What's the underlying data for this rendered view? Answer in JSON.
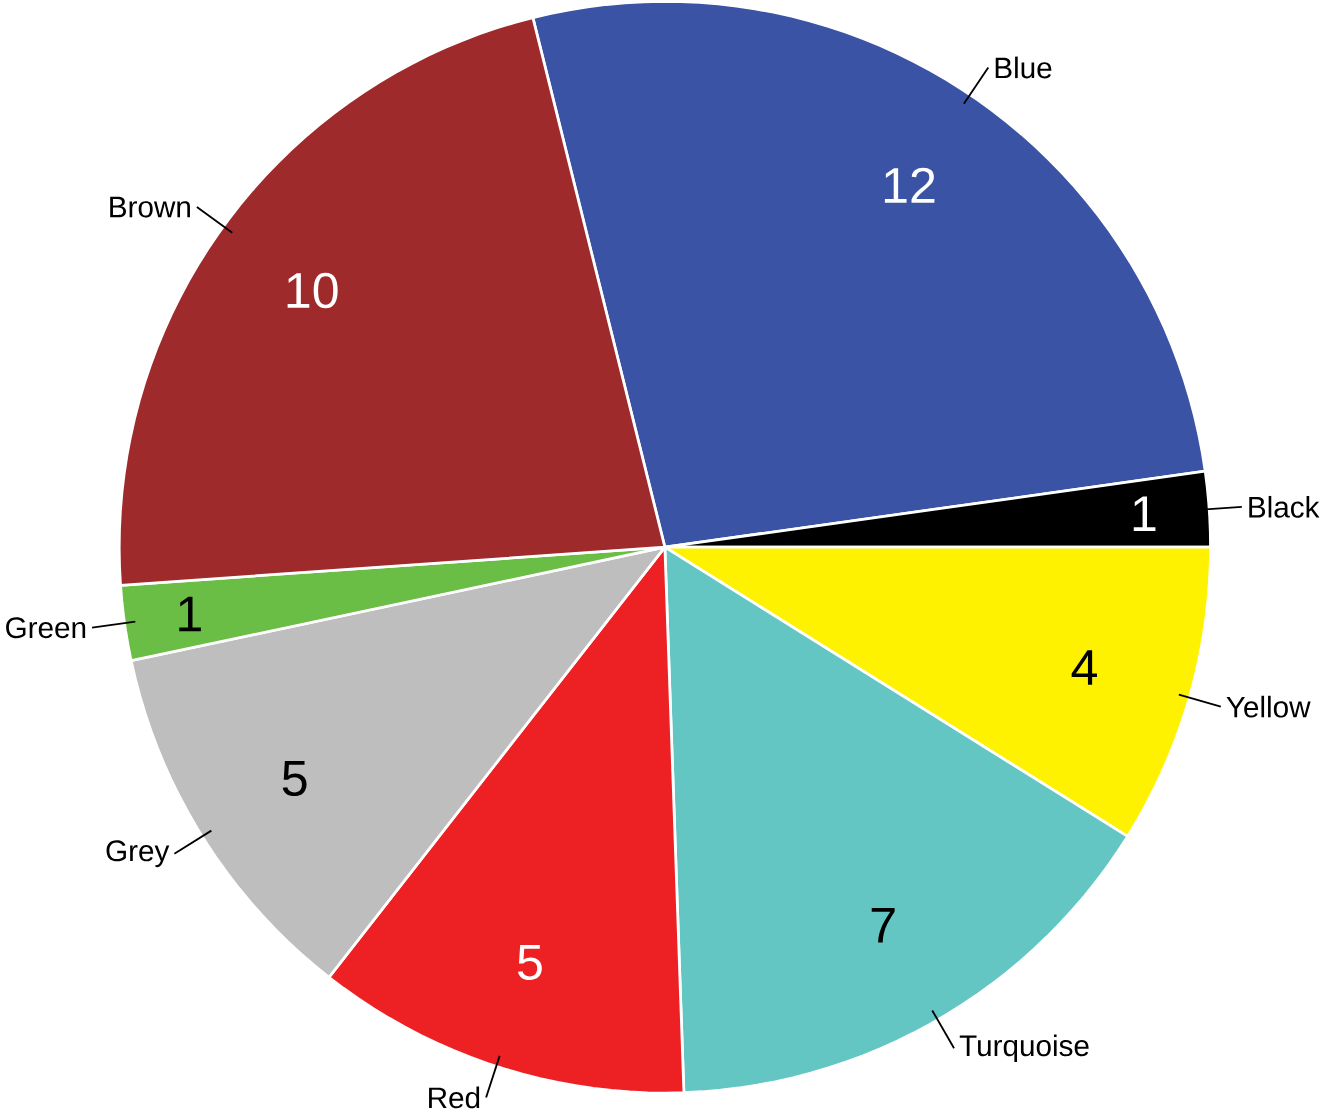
{
  "chart_data": {
    "type": "pie",
    "categories": [
      "Blue",
      "Black",
      "Yellow",
      "Turquoise",
      "Red",
      "Grey",
      "Green",
      "Brown"
    ],
    "values": [
      12,
      1,
      4,
      7,
      5,
      5,
      1,
      10
    ],
    "colors": [
      "#3a53a4",
      "#000000",
      "#fff200",
      "#63c6c3",
      "#ed2024",
      "#bebebe",
      "#6abd45",
      "#9e2a2b"
    ],
    "data_labels": true
  }
}
